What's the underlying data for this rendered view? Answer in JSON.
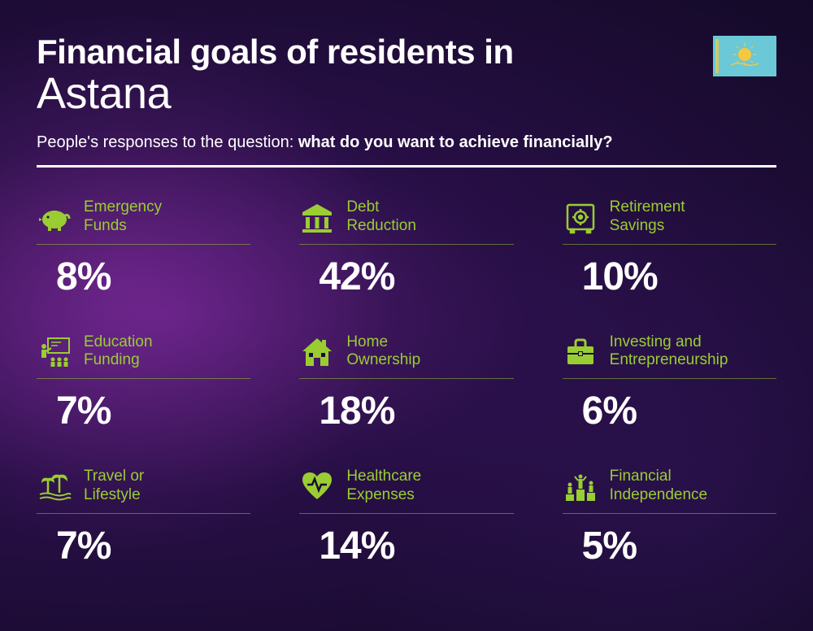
{
  "header": {
    "title_line1": "Financial goals of residents in",
    "title_line2": "Astana",
    "subtitle_prefix": "People's responses to the question: ",
    "subtitle_bold": "what do you want to achieve financially?"
  },
  "styling": {
    "accent_color": "#9acd32",
    "text_color": "#ffffff",
    "background_base": "#1a0b33",
    "title_fontsize_line1": 42,
    "title_fontsize_line2": 54,
    "subtitle_fontsize": 20,
    "label_fontsize": 19,
    "percent_fontsize": 48,
    "grid_columns": 3,
    "column_gap": 60,
    "row_gap": 42
  },
  "flag": {
    "country": "Kazakhstan",
    "bg_color": "#6bc8d6",
    "sun_color": "#f5c842"
  },
  "items": [
    {
      "icon": "piggy-bank-icon",
      "label": "Emergency\nFunds",
      "percent": "8%"
    },
    {
      "icon": "bank-icon",
      "label": "Debt\nReduction",
      "percent": "42%"
    },
    {
      "icon": "safe-icon",
      "label": "Retirement\nSavings",
      "percent": "10%"
    },
    {
      "icon": "education-icon",
      "label": "Education\nFunding",
      "percent": "7%"
    },
    {
      "icon": "house-icon",
      "label": "Home\nOwnership",
      "percent": "18%"
    },
    {
      "icon": "briefcase-icon",
      "label": "Investing and\nEntrepreneurship",
      "percent": "6%"
    },
    {
      "icon": "travel-icon",
      "label": "Travel or\nLifestyle",
      "percent": "7%"
    },
    {
      "icon": "healthcare-icon",
      "label": "Healthcare\nExpenses",
      "percent": "14%"
    },
    {
      "icon": "independence-icon",
      "label": "Financial\nIndependence",
      "percent": "5%"
    }
  ]
}
